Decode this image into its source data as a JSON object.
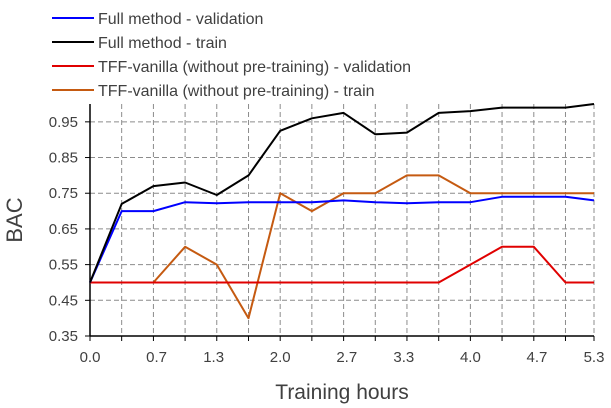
{
  "chart_data": {
    "type": "line",
    "xlabel": "Training hours",
    "ylabel": "BAC",
    "xlim": [
      0.0,
      5.3
    ],
    "ylim": [
      0.35,
      1.0
    ],
    "x_ticks": [
      0.0,
      0.7,
      1.3,
      2.0,
      2.7,
      3.3,
      4.0,
      4.7,
      5.3
    ],
    "x_tick_labels": [
      "0.0",
      "0.7",
      "1.3",
      "2.0",
      "2.7",
      "3.3",
      "4.0",
      "4.7",
      "5.3"
    ],
    "y_ticks": [
      0.35,
      0.45,
      0.55,
      0.65,
      0.75,
      0.85,
      0.95
    ],
    "y_tick_labels": [
      "0.35",
      "0.45",
      "0.55",
      "0.65",
      "0.75",
      "0.85",
      "0.95"
    ],
    "grid": true,
    "legend_position": "top-left, above plot",
    "x": [
      0.0,
      0.333,
      0.667,
      1.0,
      1.333,
      1.667,
      2.0,
      2.333,
      2.667,
      3.0,
      3.333,
      3.667,
      4.0,
      4.333,
      4.667,
      5.0,
      5.3
    ],
    "series": [
      {
        "name": "Full method - validation",
        "color": "#0000ff",
        "values": [
          0.5,
          0.7,
          0.7,
          0.725,
          0.722,
          0.725,
          0.725,
          0.725,
          0.73,
          0.725,
          0.722,
          0.725,
          0.725,
          0.74,
          0.74,
          0.74,
          0.73
        ]
      },
      {
        "name": "Full method - train",
        "color": "#000000",
        "values": [
          0.5,
          0.72,
          0.77,
          0.78,
          0.745,
          0.8,
          0.925,
          0.96,
          0.975,
          0.915,
          0.92,
          0.975,
          0.98,
          0.99,
          0.99,
          0.99,
          1.0
        ]
      },
      {
        "name": "TFF-vanilla (without pre-training) - validation",
        "color": "#e00000",
        "values": [
          0.5,
          0.5,
          0.5,
          0.5,
          0.5,
          0.5,
          0.5,
          0.5,
          0.5,
          0.5,
          0.5,
          0.5,
          0.55,
          0.6,
          0.6,
          0.5,
          0.5
        ]
      },
      {
        "name": "TFF-vanilla (without pre-training) - train",
        "color": "#c55a11",
        "values": [
          0.5,
          0.5,
          0.5,
          0.6,
          0.55,
          0.4,
          0.75,
          0.7,
          0.75,
          0.75,
          0.8,
          0.8,
          0.75,
          0.75,
          0.75,
          0.75,
          0.75
        ]
      }
    ]
  }
}
